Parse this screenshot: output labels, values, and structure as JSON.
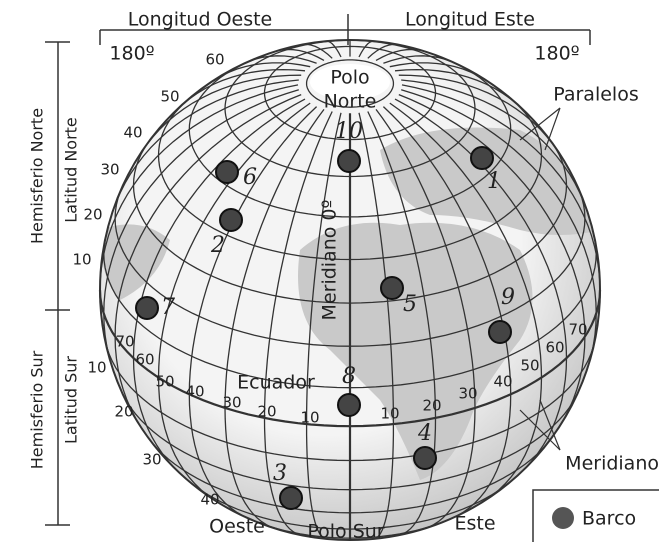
{
  "header": {
    "longitude_west": "Longitud Oeste",
    "longitude_east": "Longitud Este",
    "west_180": "180º",
    "east_180": "180º"
  },
  "side": {
    "north_hemisphere": "Hemisferio Norte",
    "north_latitude": "Latitud Norte",
    "south_hemisphere": "Hemisferio Sur",
    "south_latitude": "Latitud Sur"
  },
  "north_latitude_ticks": [
    "60",
    "50",
    "40",
    "30",
    "20",
    "10"
  ],
  "south_latitude_ticks": [
    "10",
    "20",
    "30",
    "40"
  ],
  "equator_longitude_ticks": [
    "70",
    "60",
    "50",
    "40",
    "30",
    "20",
    "10",
    "10",
    "20",
    "30",
    "40",
    "50",
    "60",
    "70"
  ],
  "globe": {
    "north_pole_line1": "Polo",
    "north_pole_line2": "Norte",
    "prime_meridian": "Meridiano 0º",
    "equator": "Ecuador",
    "south_pole": "Polo Sur",
    "west": "Oeste",
    "east": "Este"
  },
  "callouts": {
    "parallels": "Paralelos",
    "meridians": "Meridiano"
  },
  "boats": [
    "1",
    "2",
    "3",
    "4",
    "5",
    "6",
    "7",
    "8",
    "9",
    "10"
  ],
  "legend": {
    "label": "Barco"
  }
}
